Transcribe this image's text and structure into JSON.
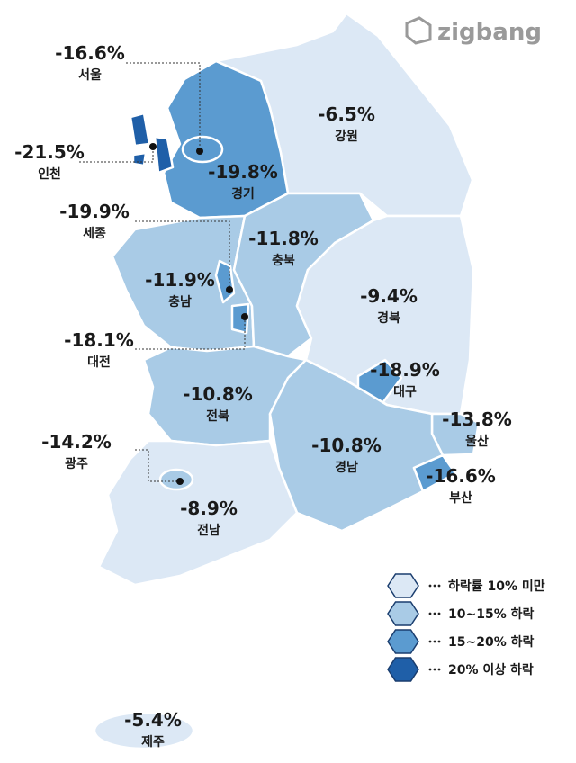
{
  "logo": "zigbang",
  "regions": [
    {
      "name": "서울",
      "change": "-16.6%",
      "color": "#5b9bd0"
    },
    {
      "name": "인천",
      "change": "-21.5%",
      "color": "#1f5fa8"
    },
    {
      "name": "경기",
      "change": "-19.8%",
      "color": "#5b9bd0"
    },
    {
      "name": "강원",
      "change": "-6.5%",
      "color": "#dce8f5"
    },
    {
      "name": "세종",
      "change": "-19.9%",
      "color": "#5b9bd0"
    },
    {
      "name": "충북",
      "change": "-11.8%",
      "color": "#a9cbe6"
    },
    {
      "name": "충남",
      "change": "-11.9%",
      "color": "#a9cbe6"
    },
    {
      "name": "대전",
      "change": "-18.1%",
      "color": "#5b9bd0"
    },
    {
      "name": "경북",
      "change": "-9.4%",
      "color": "#dce8f5"
    },
    {
      "name": "대구",
      "change": "-18.9%",
      "color": "#5b9bd0"
    },
    {
      "name": "전북",
      "change": "-10.8%",
      "color": "#a9cbe6"
    },
    {
      "name": "울산",
      "change": "-13.8%",
      "color": "#a9cbe6"
    },
    {
      "name": "광주",
      "change": "-14.2%",
      "color": "#a9cbe6"
    },
    {
      "name": "경남",
      "change": "-10.8%",
      "color": "#a9cbe6"
    },
    {
      "name": "부산",
      "change": "-16.6%",
      "color": "#5b9bd0"
    },
    {
      "name": "전남",
      "change": "-8.9%",
      "color": "#dce8f5"
    },
    {
      "name": "제주",
      "change": "-5.4%",
      "color": "#dce8f5"
    }
  ],
  "legend": [
    {
      "label": "하락률 10% 미만",
      "color": "#dce8f5"
    },
    {
      "label": "10~15% 하락",
      "color": "#a9cbe6"
    },
    {
      "label": "15~20% 하락",
      "color": "#5b9bd0"
    },
    {
      "label": "20% 이상 하락",
      "color": "#1f5fa8"
    }
  ]
}
